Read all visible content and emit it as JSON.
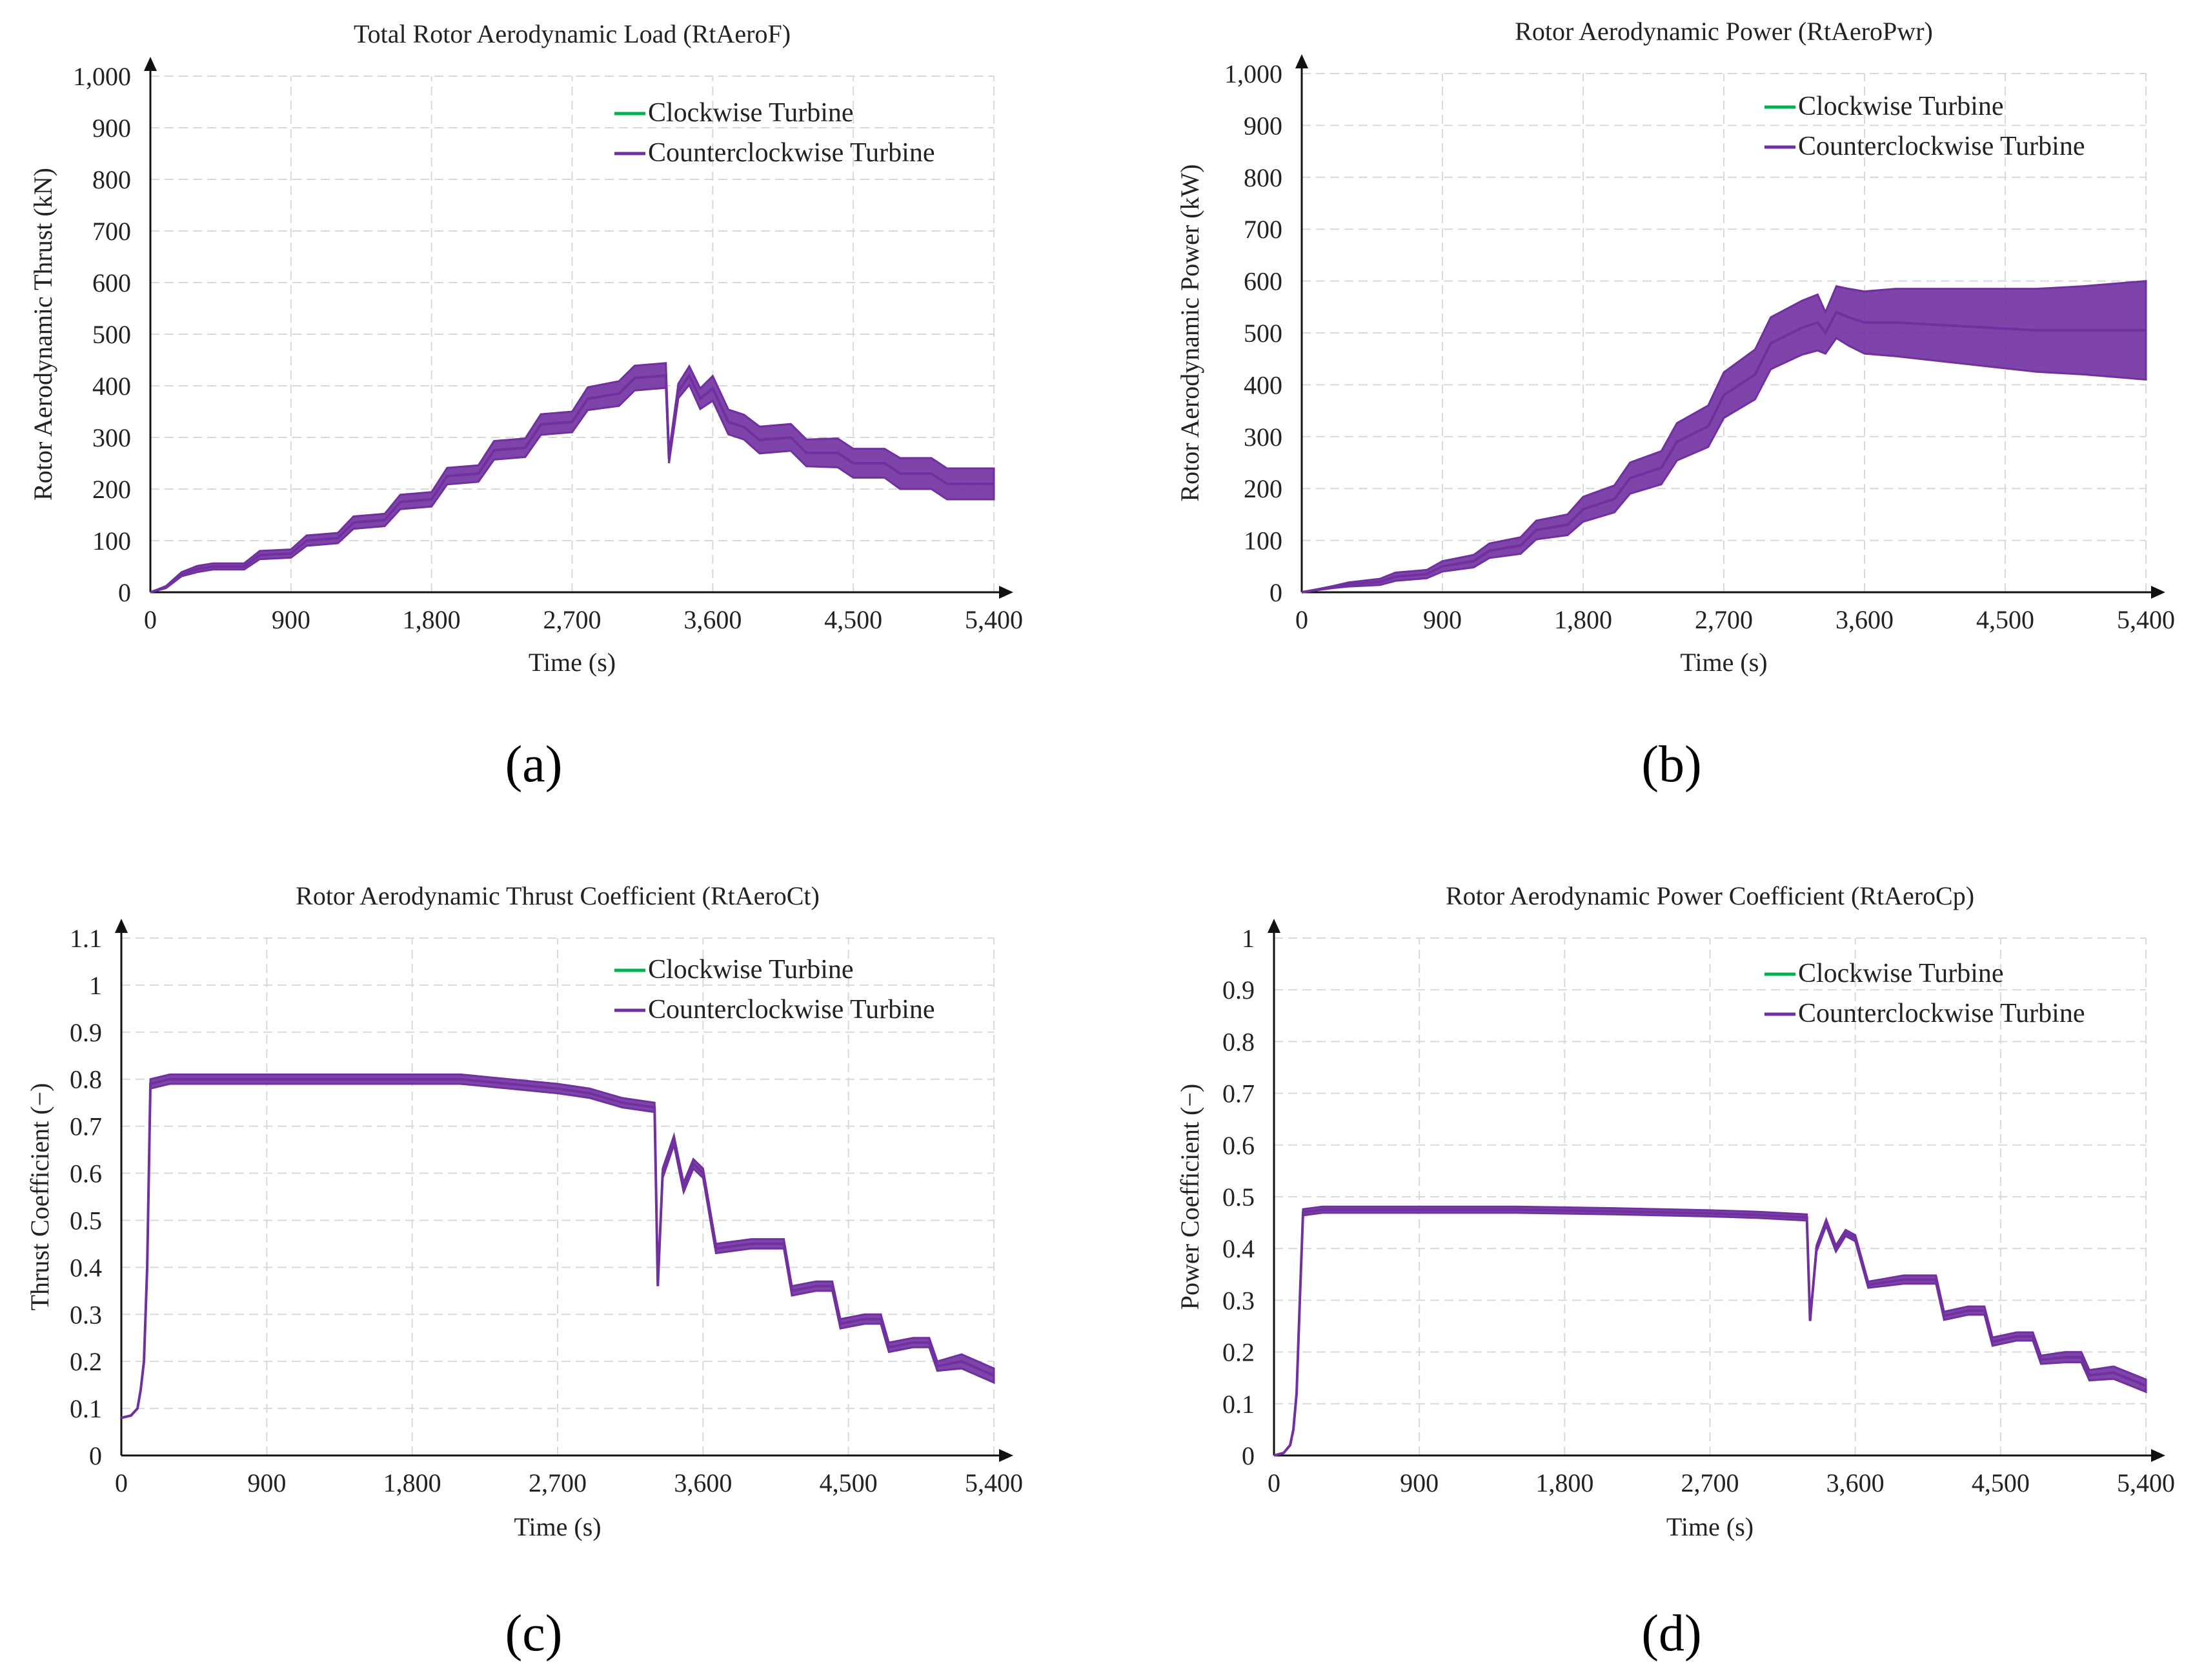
{
  "figure": {
    "panel_labels": [
      "(a)",
      "(b)",
      "(c)",
      "(d)"
    ]
  },
  "chart_data": [
    {
      "type": "line",
      "title": "Total Rotor Aerodynamic Load (RtAeroF)",
      "xlabel": "Time (s)",
      "ylabel": "Rotor Aerodynamic Thrust (kN)",
      "xlim": [
        0,
        5400
      ],
      "ylim": [
        0,
        1000
      ],
      "xticks": [
        0,
        900,
        1800,
        2700,
        3600,
        4500,
        5400
      ],
      "xtick_labels": [
        "0",
        "900",
        "1,800",
        "2,700",
        "3,600",
        "4,500",
        "5,400"
      ],
      "yticks": [
        0,
        100,
        200,
        300,
        400,
        500,
        600,
        700,
        800,
        900,
        1000
      ],
      "ytick_labels": [
        "0",
        "100",
        "200",
        "300",
        "400",
        "500",
        "600",
        "700",
        "800",
        "900",
        "1,000"
      ],
      "grid": true,
      "legend_position": "top-right",
      "series": [
        {
          "name": "Clockwise Turbine",
          "color": "#00b050",
          "x": [
            0,
            100,
            200,
            300,
            400,
            600,
            700,
            900,
            1000,
            1200,
            1300,
            1500,
            1600,
            1800,
            1900,
            2100,
            2200,
            2400,
            2500,
            2700,
            2800,
            3000,
            3100,
            3300,
            3320,
            3380,
            3450,
            3520,
            3600,
            3700,
            3800,
            3900,
            4100,
            4200,
            4400,
            4500,
            4700,
            4800,
            5000,
            5100,
            5400
          ],
          "y": [
            0,
            10,
            35,
            45,
            50,
            50,
            72,
            75,
            100,
            105,
            135,
            140,
            175,
            180,
            225,
            230,
            275,
            280,
            325,
            330,
            375,
            385,
            415,
            420,
            260,
            390,
            420,
            375,
            395,
            330,
            320,
            295,
            300,
            270,
            270,
            250,
            250,
            230,
            230,
            210,
            210
          ]
        },
        {
          "name": "Counterclockwise Turbine",
          "color": "#7030a0",
          "x": [
            0,
            100,
            200,
            300,
            400,
            600,
            700,
            900,
            1000,
            1200,
            1300,
            1500,
            1600,
            1800,
            1900,
            2100,
            2200,
            2400,
            2500,
            2700,
            2800,
            3000,
            3100,
            3300,
            3320,
            3380,
            3450,
            3520,
            3600,
            3700,
            3800,
            3900,
            4100,
            4200,
            4400,
            4500,
            4700,
            4800,
            5000,
            5100,
            5400
          ],
          "y": [
            0,
            10,
            35,
            45,
            50,
            50,
            72,
            75,
            100,
            105,
            135,
            140,
            175,
            180,
            225,
            230,
            275,
            280,
            325,
            330,
            375,
            385,
            415,
            420,
            260,
            390,
            420,
            375,
            395,
            330,
            320,
            295,
            300,
            270,
            270,
            250,
            250,
            230,
            230,
            210,
            210
          ],
          "band": [
            0,
            2,
            4,
            6,
            6,
            6,
            8,
            8,
            10,
            10,
            12,
            12,
            14,
            14,
            16,
            16,
            18,
            18,
            20,
            20,
            22,
            24,
            24,
            24,
            10,
            14,
            18,
            20,
            24,
            24,
            24,
            26,
            26,
            26,
            28,
            28,
            28,
            30,
            30,
            30,
            30
          ]
        }
      ]
    },
    {
      "type": "line",
      "title": "Rotor Aerodynamic Power (RtAeroPwr)",
      "xlabel": "Time (s)",
      "ylabel": "Rotor Aerodynamic Power (kW)",
      "xlim": [
        0,
        5400
      ],
      "ylim": [
        0,
        1000
      ],
      "xticks": [
        0,
        900,
        1800,
        2700,
        3600,
        4500,
        5400
      ],
      "xtick_labels": [
        "0",
        "900",
        "1,800",
        "2,700",
        "3,600",
        "4,500",
        "5,400"
      ],
      "yticks": [
        0,
        100,
        200,
        300,
        400,
        500,
        600,
        700,
        800,
        900,
        1000
      ],
      "ytick_labels": [
        "0",
        "100",
        "200",
        "300",
        "400",
        "500",
        "600",
        "700",
        "800",
        "900",
        "1,000"
      ],
      "grid": true,
      "legend_position": "top-right",
      "series": [
        {
          "name": "Clockwise Turbine",
          "color": "#00b050",
          "x": [
            0,
            200,
            300,
            500,
            600,
            800,
            900,
            1100,
            1200,
            1400,
            1500,
            1700,
            1800,
            2000,
            2100,
            2300,
            2400,
            2600,
            2700,
            2900,
            3000,
            3200,
            3300,
            3350,
            3420,
            3500,
            3600,
            3800,
            4100,
            4400,
            4700,
            5000,
            5400
          ],
          "y": [
            0,
            10,
            15,
            20,
            30,
            35,
            50,
            60,
            80,
            90,
            120,
            130,
            160,
            180,
            220,
            240,
            290,
            320,
            380,
            420,
            480,
            510,
            520,
            500,
            540,
            530,
            520,
            520,
            515,
            510,
            505,
            505,
            505
          ]
        },
        {
          "name": "Counterclockwise Turbine",
          "color": "#7030a0",
          "x": [
            0,
            200,
            300,
            500,
            600,
            800,
            900,
            1100,
            1200,
            1400,
            1500,
            1700,
            1800,
            2000,
            2100,
            2300,
            2400,
            2600,
            2700,
            2900,
            3000,
            3200,
            3300,
            3350,
            3420,
            3500,
            3600,
            3800,
            4100,
            4400,
            4700,
            5000,
            5400
          ],
          "y": [
            0,
            10,
            15,
            20,
            30,
            35,
            50,
            60,
            80,
            90,
            120,
            130,
            160,
            180,
            220,
            240,
            290,
            320,
            380,
            420,
            480,
            510,
            520,
            500,
            540,
            530,
            520,
            520,
            515,
            510,
            505,
            505,
            505
          ],
          "band": [
            0,
            2,
            4,
            6,
            8,
            8,
            10,
            12,
            14,
            16,
            18,
            20,
            24,
            26,
            30,
            32,
            36,
            40,
            44,
            48,
            50,
            52,
            54,
            40,
            50,
            55,
            60,
            65,
            70,
            75,
            80,
            85,
            95
          ]
        }
      ]
    },
    {
      "type": "line",
      "title": "Rotor Aerodynamic Thrust Coefficient (RtAeroCt)",
      "xlabel": "Time (s)",
      "ylabel": "Thrust Coefficient (−)",
      "xlim": [
        0,
        5400
      ],
      "ylim": [
        0,
        1.1
      ],
      "xticks": [
        0,
        900,
        1800,
        2700,
        3600,
        4500,
        5400
      ],
      "xtick_labels": [
        "0",
        "900",
        "1,800",
        "2,700",
        "3,600",
        "4,500",
        "5,400"
      ],
      "yticks": [
        0,
        0.1,
        0.2,
        0.3,
        0.4,
        0.5,
        0.6,
        0.7,
        0.8,
        0.9,
        1,
        1.1
      ],
      "ytick_labels": [
        "0",
        "0.1",
        "0.2",
        "0.3",
        "0.4",
        "0.5",
        "0.6",
        "0.7",
        "0.8",
        "0.9",
        "1",
        "1.1"
      ],
      "grid": true,
      "legend_position": "top-right",
      "series": [
        {
          "name": "Clockwise Turbine",
          "color": "#00b050",
          "x": [
            0,
            60,
            100,
            120,
            140,
            160,
            180,
            300,
            600,
            900,
            1200,
            1500,
            1800,
            2100,
            2400,
            2700,
            2900,
            3100,
            3300,
            3320,
            3350,
            3420,
            3480,
            3540,
            3600,
            3680,
            3900,
            4100,
            4150,
            4300,
            4400,
            4450,
            4600,
            4700,
            4750,
            4900,
            5000,
            5050,
            5200,
            5400
          ],
          "y": [
            0.08,
            0.085,
            0.1,
            0.14,
            0.2,
            0.4,
            0.79,
            0.8,
            0.8,
            0.8,
            0.8,
            0.8,
            0.8,
            0.8,
            0.79,
            0.78,
            0.77,
            0.75,
            0.74,
            0.36,
            0.6,
            0.67,
            0.57,
            0.62,
            0.6,
            0.44,
            0.45,
            0.45,
            0.35,
            0.36,
            0.36,
            0.28,
            0.29,
            0.29,
            0.23,
            0.24,
            0.24,
            0.19,
            0.2,
            0.17
          ]
        },
        {
          "name": "Counterclockwise Turbine",
          "color": "#7030a0",
          "x": [
            0,
            60,
            100,
            120,
            140,
            160,
            180,
            300,
            600,
            900,
            1200,
            1500,
            1800,
            2100,
            2400,
            2700,
            2900,
            3100,
            3300,
            3320,
            3350,
            3420,
            3480,
            3540,
            3600,
            3680,
            3900,
            4100,
            4150,
            4300,
            4400,
            4450,
            4600,
            4700,
            4750,
            4900,
            5000,
            5050,
            5200,
            5400
          ],
          "y": [
            0.08,
            0.085,
            0.1,
            0.14,
            0.2,
            0.4,
            0.79,
            0.8,
            0.8,
            0.8,
            0.8,
            0.8,
            0.8,
            0.8,
            0.79,
            0.78,
            0.77,
            0.75,
            0.74,
            0.36,
            0.6,
            0.67,
            0.57,
            0.62,
            0.6,
            0.44,
            0.45,
            0.45,
            0.35,
            0.36,
            0.36,
            0.28,
            0.29,
            0.29,
            0.23,
            0.24,
            0.24,
            0.19,
            0.2,
            0.17
          ],
          "band": [
            0,
            0,
            0,
            0,
            0,
            0,
            0.01,
            0.01,
            0.01,
            0.01,
            0.01,
            0.01,
            0.01,
            0.01,
            0.01,
            0.01,
            0.01,
            0.01,
            0.01,
            0,
            0.01,
            0.01,
            0.01,
            0.01,
            0.01,
            0.01,
            0.01,
            0.01,
            0.01,
            0.01,
            0.01,
            0.01,
            0.01,
            0.01,
            0.01,
            0.01,
            0.01,
            0.01,
            0.015,
            0.015
          ]
        }
      ]
    },
    {
      "type": "line",
      "title": "Rotor Aerodynamic Power Coefficient (RtAeroCp)",
      "xlabel": "Time (s)",
      "ylabel": "Power Coefficient (−)",
      "xlim": [
        0,
        5400
      ],
      "ylim": [
        0,
        1
      ],
      "xticks": [
        0,
        900,
        1800,
        2700,
        3600,
        4500,
        5400
      ],
      "xtick_labels": [
        "0",
        "900",
        "1,800",
        "2,700",
        "3,600",
        "4,500",
        "5,400"
      ],
      "yticks": [
        0,
        0.1,
        0.2,
        0.3,
        0.4,
        0.5,
        0.6,
        0.7,
        0.8,
        0.9,
        1
      ],
      "ytick_labels": [
        "0",
        "0.1",
        "0.2",
        "0.3",
        "0.4",
        "0.5",
        "0.6",
        "0.7",
        "0.8",
        "0.9",
        "1"
      ],
      "grid": true,
      "legend_position": "top-right",
      "series": [
        {
          "name": "Clockwise Turbine",
          "color": "#00b050",
          "x": [
            0,
            60,
            100,
            120,
            140,
            160,
            180,
            300,
            900,
            1500,
            2100,
            2700,
            3000,
            3300,
            3320,
            3360,
            3420,
            3480,
            3540,
            3600,
            3680,
            3900,
            4100,
            4150,
            4300,
            4400,
            4450,
            4600,
            4700,
            4750,
            4900,
            5000,
            5050,
            5200,
            5400
          ],
          "y": [
            0,
            0.005,
            0.02,
            0.05,
            0.12,
            0.3,
            0.47,
            0.475,
            0.475,
            0.475,
            0.472,
            0.468,
            0.465,
            0.46,
            0.26,
            0.4,
            0.45,
            0.4,
            0.43,
            0.42,
            0.33,
            0.34,
            0.34,
            0.27,
            0.28,
            0.28,
            0.22,
            0.23,
            0.23,
            0.185,
            0.19,
            0.19,
            0.155,
            0.16,
            0.135
          ]
        },
        {
          "name": "Counterclockwise Turbine",
          "color": "#7030a0",
          "x": [
            0,
            60,
            100,
            120,
            140,
            160,
            180,
            300,
            900,
            1500,
            2100,
            2700,
            3000,
            3300,
            3320,
            3360,
            3420,
            3480,
            3540,
            3600,
            3680,
            3900,
            4100,
            4150,
            4300,
            4400,
            4450,
            4600,
            4700,
            4750,
            4900,
            5000,
            5050,
            5200,
            5400
          ],
          "y": [
            0,
            0.005,
            0.02,
            0.05,
            0.12,
            0.3,
            0.47,
            0.475,
            0.475,
            0.475,
            0.472,
            0.468,
            0.465,
            0.46,
            0.26,
            0.4,
            0.45,
            0.4,
            0.43,
            0.42,
            0.33,
            0.34,
            0.34,
            0.27,
            0.28,
            0.28,
            0.22,
            0.23,
            0.23,
            0.185,
            0.19,
            0.19,
            0.155,
            0.16,
            0.135
          ],
          "band": [
            0,
            0,
            0,
            0,
            0,
            0,
            0.006,
            0.006,
            0.006,
            0.006,
            0.006,
            0.006,
            0.006,
            0.006,
            0,
            0.006,
            0.006,
            0.006,
            0.006,
            0.006,
            0.006,
            0.008,
            0.008,
            0.008,
            0.008,
            0.008,
            0.008,
            0.008,
            0.008,
            0.008,
            0.01,
            0.01,
            0.01,
            0.012,
            0.012
          ]
        }
      ]
    }
  ]
}
